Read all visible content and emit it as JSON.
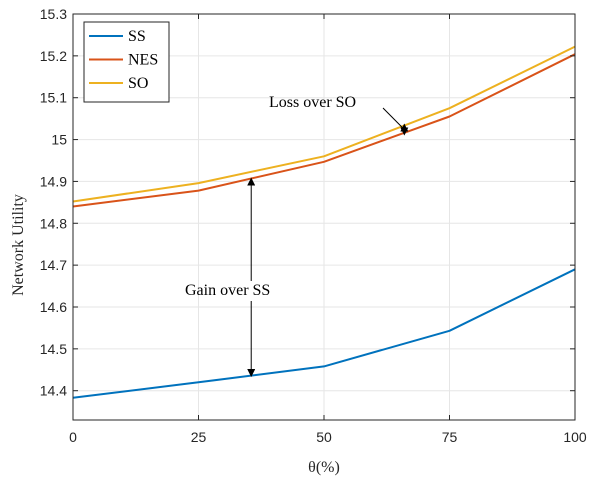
{
  "chart_data": {
    "type": "line",
    "x": [
      0,
      25,
      50,
      75,
      100
    ],
    "xlabel": "θ(%)",
    "ylabel": "Network Utility",
    "xlim": [
      0,
      100
    ],
    "ylim": [
      14.33,
      15.3
    ],
    "xticks": [
      "0",
      "25",
      "50",
      "75",
      "100"
    ],
    "yticks": [
      "14.4",
      "14.5",
      "14.6",
      "14.7",
      "14.8",
      "14.9",
      "15",
      "15.1",
      "15.2",
      "15.3"
    ],
    "grid": true,
    "legend_position": "top-left",
    "series": [
      {
        "name": "SS",
        "color": "#0072BD",
        "values": [
          14.383,
          14.42,
          14.458,
          14.543,
          14.69
        ]
      },
      {
        "name": "NES",
        "color": "#D95319",
        "values": [
          14.84,
          14.878,
          14.947,
          15.055,
          15.204
        ]
      },
      {
        "name": "SO",
        "color": "#EDB120",
        "values": [
          14.852,
          14.896,
          14.96,
          15.075,
          15.222
        ]
      }
    ],
    "annotations": [
      {
        "text": "Loss over SO",
        "arrow_x": 66,
        "arrow_y": [
          15.012,
          15.036
        ]
      },
      {
        "text": "Gain over SS",
        "arrow_x": 35.5,
        "arrow_y": [
          14.435,
          14.907
        ]
      }
    ]
  }
}
